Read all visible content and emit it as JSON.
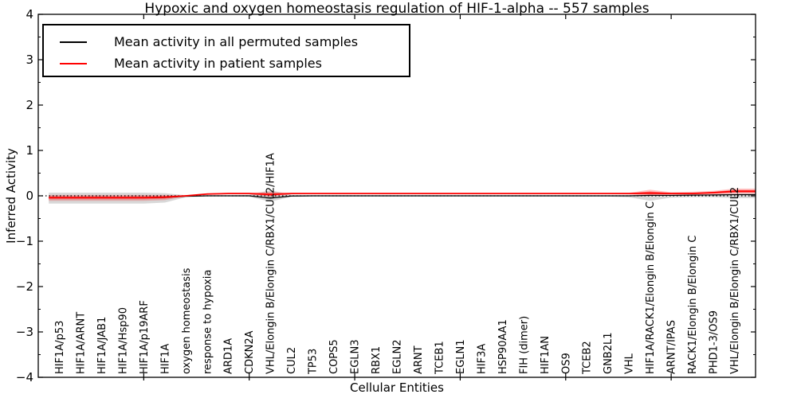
{
  "chart_data": {
    "type": "line",
    "title": "Hypoxic and oxygen homeostasis regulation of HIF-1-alpha -- 557 samples",
    "xlabel": "Cellular Entities",
    "ylabel": "Inferred Activity",
    "ylim": [
      -4,
      4
    ],
    "yticks": [
      4,
      3,
      2,
      1,
      0,
      -1,
      -2,
      -3,
      -4
    ],
    "xticks_major_at_entity": [
      5,
      10,
      15,
      20,
      25,
      30
    ],
    "grid": false,
    "zero_reference_line": 0,
    "legend_position": "upper left",
    "legend": [
      {
        "label": "Mean activity in all permuted samples",
        "color": "#000000"
      },
      {
        "label": "Mean activity in patient samples",
        "color": "#ff0000"
      }
    ],
    "colors": {
      "patient_line": "#ff0000",
      "patient_band": "rgba(255,0,0,0.22)",
      "patient_band_inner": "rgba(255,0,0,0.38)",
      "permuted_line": "#000000",
      "permuted_band": "rgba(125,125,125,0.30)",
      "zero_line": "#000000",
      "spine": "#000000"
    },
    "entities": [
      "HIF1A/p53",
      "HIF1A/ARNT",
      "HIF1A/JAB1",
      "HIF1A/Hsp90",
      "HIF1A/p19ARF",
      "HIF1A",
      "oxygen homeostasis",
      "response to hypoxia",
      "ARD1A",
      "CDKN2A",
      "VHL/Elongin B/Elongin C/RBX1/CUL2/HIF1A",
      "CUL2",
      "TP53",
      "COPS5",
      "EGLN3",
      "RBX1",
      "EGLN2",
      "ARNT",
      "TCEB1",
      "EGLN1",
      "HIF3A",
      "HSP90AA1",
      "FIH (dimer)",
      "HIF1AN",
      "OS9",
      "TCEB2",
      "GNB2L1",
      "VHL",
      "HIF1A/RACK1/Elongin B/Elongin C",
      "ARNT/IPAS",
      "RACK1/Elongin B/Elongin C",
      "PHD1-3/OS9",
      "VHL/Elongin B/Elongin C/RBX1/CUL2"
    ],
    "series": [
      {
        "name": "permuted_mean",
        "values": [
          -0.04,
          -0.04,
          -0.04,
          -0.04,
          -0.04,
          -0.035,
          -0.01,
          0,
          0,
          0,
          -0.05,
          -0.005,
          0,
          0,
          0,
          0,
          0,
          0,
          0,
          0,
          0,
          0,
          0,
          0,
          0,
          0,
          0,
          0,
          0.01,
          0.01,
          0.015,
          0.02,
          0.025
        ]
      },
      {
        "name": "patient_mean",
        "values": [
          -0.04,
          -0.04,
          -0.04,
          -0.04,
          -0.04,
          -0.03,
          0,
          0.04,
          0.05,
          0.05,
          0.03,
          0.05,
          0.05,
          0.05,
          0.05,
          0.05,
          0.05,
          0.05,
          0.05,
          0.05,
          0.05,
          0.05,
          0.05,
          0.05,
          0.05,
          0.05,
          0.05,
          0.05,
          0.06,
          0.05,
          0.05,
          0.07,
          0.1
        ]
      }
    ],
    "bands": {
      "patient_upper": [
        0.02,
        0.02,
        0.02,
        0.02,
        0.02,
        0.02,
        0.01,
        0.055,
        0.065,
        0.065,
        0.09,
        0.065,
        0.062,
        0.062,
        0.062,
        0.062,
        0.062,
        0.062,
        0.062,
        0.062,
        0.062,
        0.062,
        0.062,
        0.062,
        0.062,
        0.062,
        0.062,
        0.065,
        0.135,
        0.08,
        0.09,
        0.11,
        0.16
      ],
      "patient_lower": [
        -0.11,
        -0.11,
        -0.11,
        -0.11,
        -0.11,
        -0.095,
        -0.015,
        0.025,
        0.035,
        0.035,
        -0.02,
        0.035,
        0.038,
        0.038,
        0.038,
        0.038,
        0.038,
        0.038,
        0.038,
        0.038,
        0.038,
        0.038,
        0.038,
        0.038,
        0.038,
        0.038,
        0.038,
        0.03,
        0,
        0.02,
        0.02,
        0.03,
        0.045
      ],
      "permuted_upper": [
        0.07,
        0.07,
        0.07,
        0.07,
        0.07,
        0.06,
        0.01,
        0.012,
        0.012,
        0.02,
        0.125,
        0.02,
        0.012,
        0.012,
        0.012,
        0.012,
        0.012,
        0.012,
        0.012,
        0.012,
        0.012,
        0.012,
        0.012,
        0.012,
        0.012,
        0.012,
        0.012,
        0.012,
        0.03,
        0.02,
        0.02,
        0.03,
        0.06
      ],
      "permuted_lower": [
        -0.17,
        -0.17,
        -0.17,
        -0.17,
        -0.17,
        -0.15,
        -0.03,
        -0.012,
        -0.012,
        -0.02,
        -0.13,
        -0.02,
        -0.015,
        -0.015,
        -0.015,
        -0.015,
        -0.015,
        -0.015,
        -0.015,
        -0.015,
        -0.015,
        -0.015,
        -0.015,
        -0.015,
        -0.015,
        -0.015,
        -0.015,
        -0.03,
        -0.11,
        -0.04,
        -0.03,
        -0.03,
        -0.05
      ]
    }
  }
}
